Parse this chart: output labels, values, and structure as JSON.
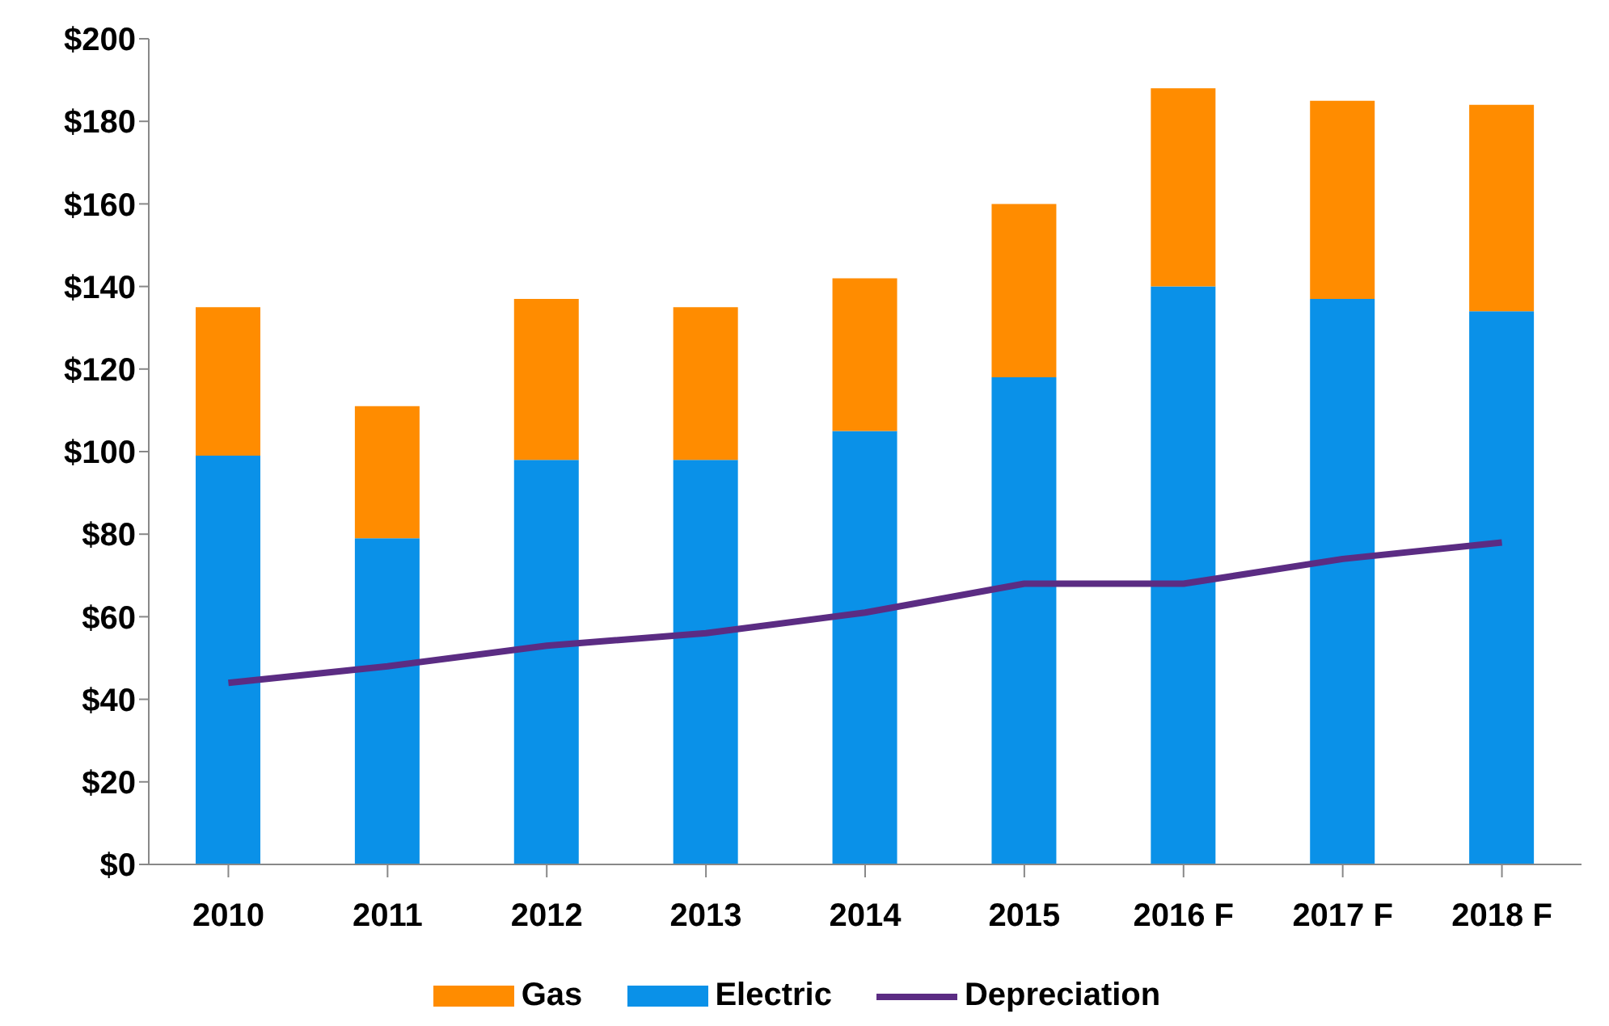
{
  "chart_data": {
    "type": "bar",
    "stacked": true,
    "categories": [
      "2010",
      "2011",
      "2012",
      "2013",
      "2014",
      "2015",
      "2016 F",
      "2017 F",
      "2018 F"
    ],
    "series": [
      {
        "name": "Electric",
        "color": "#0a91e8",
        "values": [
          99,
          79,
          98,
          98,
          105,
          118,
          140,
          137,
          134
        ]
      },
      {
        "name": "Gas",
        "color": "#ff8c00",
        "values": [
          36,
          32,
          39,
          37,
          37,
          42,
          48,
          48,
          50
        ]
      },
      {
        "name": "Depreciation",
        "type": "line",
        "color": "#5b2c83",
        "values": [
          44,
          48,
          53,
          56,
          61,
          68,
          68,
          74,
          78
        ]
      }
    ],
    "ylim": [
      0,
      200
    ],
    "yticks": [
      {
        "value": 0,
        "label": "$0"
      },
      {
        "value": 20,
        "label": "$20"
      },
      {
        "value": 40,
        "label": "$40"
      },
      {
        "value": 60,
        "label": "$60"
      },
      {
        "value": 80,
        "label": "$80"
      },
      {
        "value": 100,
        "label": "$100"
      },
      {
        "value": 120,
        "label": "$120"
      },
      {
        "value": 140,
        "label": "$140"
      },
      {
        "value": 160,
        "label": "$160"
      },
      {
        "value": 180,
        "label": "$180"
      },
      {
        "value": 200,
        "label": "$200"
      }
    ],
    "grid": false,
    "legend": "bottom",
    "marker": "none",
    "line_style": "solid"
  }
}
